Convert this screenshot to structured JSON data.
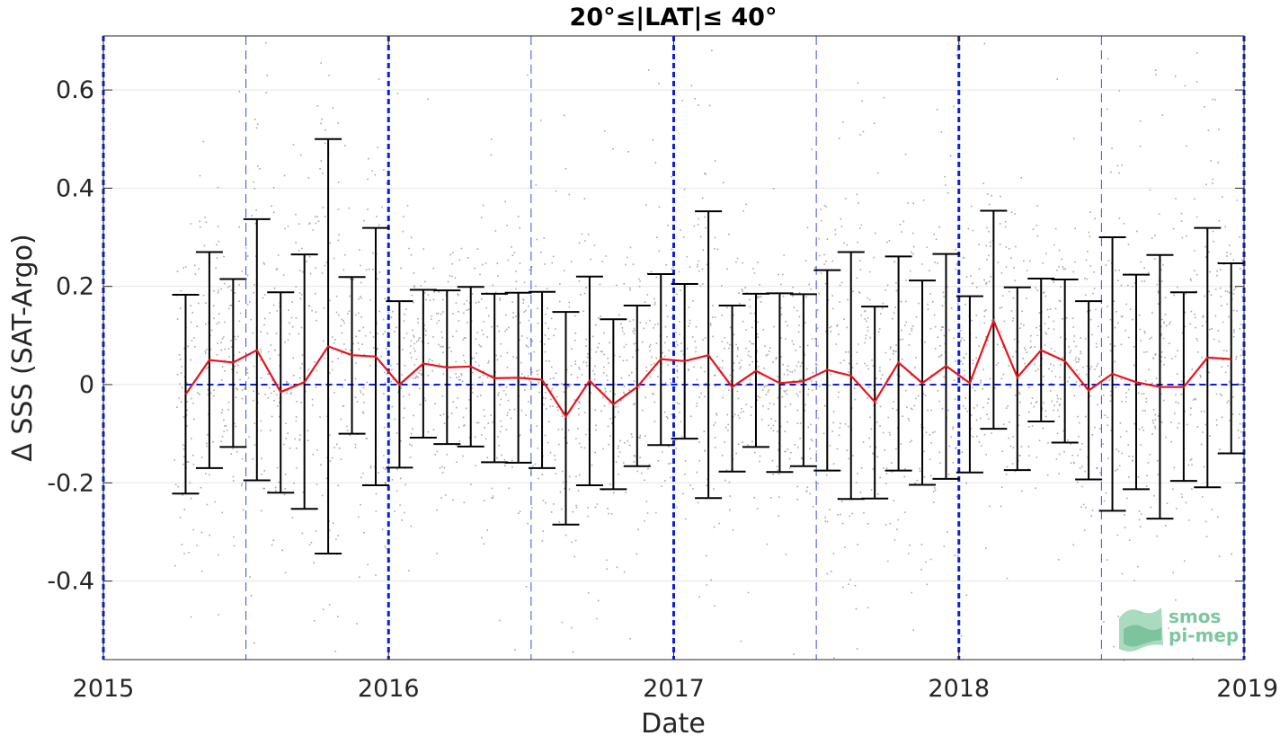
{
  "chart_data": {
    "type": "scatter",
    "title": "20°≤|LAT|≤ 40°",
    "xlabel": "Date",
    "ylabel": "Δ SSS (SAT-Argo)",
    "xlim": [
      "2015-01-01",
      "2019-01-01"
    ],
    "ylim": [
      -0.56,
      0.71
    ],
    "xticks": [
      "2015",
      "2016",
      "2017",
      "2018",
      "2019"
    ],
    "yticks": [
      -0.4,
      -0.2,
      0,
      0.2,
      0.4,
      0.6
    ],
    "ytick_labels": [
      "-0.4",
      "-0.2",
      "0",
      "0.2",
      "0.4",
      "0.6"
    ],
    "grid": true,
    "reference_line_y": 0,
    "year_lines": [
      "2015-01-01",
      "2016-01-01",
      "2017-01-01",
      "2018-01-01",
      "2019-01-01"
    ],
    "half_year_lines": [
      "2015-07-01",
      "2016-07-01",
      "2017-07-01",
      "2018-07-01"
    ],
    "colors": {
      "scatter": "#8c8c8c",
      "mean_line": "#e8141b",
      "error_bars": "#000000",
      "reference_lines": "#0a1ee6",
      "grid": "#e6e6e6",
      "logo": "#7cc7a0"
    },
    "monthly": {
      "dates": [
        "2015-04",
        "2015-05",
        "2015-06",
        "2015-07",
        "2015-08",
        "2015-09",
        "2015-10",
        "2015-11",
        "2015-12",
        "2016-01",
        "2016-02",
        "2016-03",
        "2016-04",
        "2016-05",
        "2016-06",
        "2016-07",
        "2016-08",
        "2016-09",
        "2016-10",
        "2016-11",
        "2016-12",
        "2017-01",
        "2017-02",
        "2017-03",
        "2017-04",
        "2017-05",
        "2017-06",
        "2017-07",
        "2017-08",
        "2017-09",
        "2017-10",
        "2017-11",
        "2017-12",
        "2018-01",
        "2018-02",
        "2018-03",
        "2018-04",
        "2018-05",
        "2018-06",
        "2018-07",
        "2018-08",
        "2018-09",
        "2018-10",
        "2018-11",
        "2018-12"
      ],
      "mean": [
        -0.02,
        0.05,
        0.045,
        0.07,
        -0.015,
        0.005,
        0.078,
        0.06,
        0.057,
        0.0,
        0.043,
        0.035,
        0.037,
        0.013,
        0.014,
        0.01,
        -0.065,
        0.008,
        -0.04,
        -0.005,
        0.052,
        0.048,
        0.06,
        -0.005,
        0.028,
        0.003,
        0.007,
        0.03,
        0.018,
        -0.035,
        0.045,
        0.003,
        0.038,
        0.003,
        0.13,
        0.015,
        0.07,
        0.048,
        -0.012,
        0.022,
        0.005,
        -0.005,
        -0.005,
        0.055,
        0.052
      ],
      "upper": [
        0.183,
        0.27,
        0.215,
        0.337,
        0.188,
        0.265,
        0.5,
        0.219,
        0.319,
        0.17,
        0.193,
        0.192,
        0.199,
        0.185,
        0.187,
        0.189,
        0.148,
        0.22,
        0.133,
        0.161,
        0.225,
        0.205,
        0.353,
        0.161,
        0.185,
        0.186,
        0.184,
        0.233,
        0.27,
        0.159,
        0.261,
        0.212,
        0.266,
        0.18,
        0.354,
        0.198,
        0.216,
        0.214,
        0.17,
        0.3,
        0.224,
        0.264,
        0.188,
        0.319,
        0.247
      ],
      "lower": [
        -0.222,
        -0.17,
        -0.127,
        -0.195,
        -0.22,
        -0.253,
        -0.344,
        -0.1,
        -0.205,
        -0.169,
        -0.108,
        -0.121,
        -0.126,
        -0.158,
        -0.159,
        -0.17,
        -0.285,
        -0.205,
        -0.213,
        -0.166,
        -0.123,
        -0.11,
        -0.231,
        -0.177,
        -0.127,
        -0.178,
        -0.166,
        -0.175,
        -0.233,
        -0.232,
        -0.175,
        -0.204,
        -0.192,
        -0.179,
        -0.09,
        -0.174,
        -0.075,
        -0.118,
        -0.193,
        -0.257,
        -0.213,
        -0.273,
        -0.196,
        -0.209,
        -0.14
      ]
    },
    "scatter_note_points": 3200
  }
}
